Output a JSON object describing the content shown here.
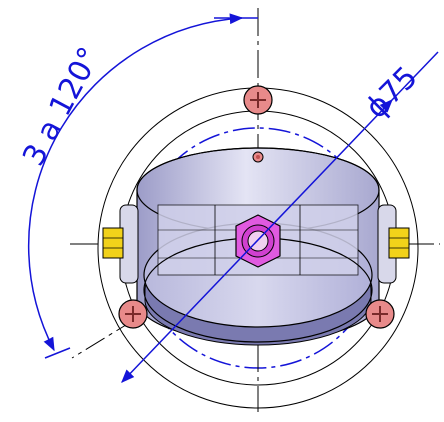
{
  "drawing": {
    "angular_dimension": {
      "label": "3 a 120°"
    },
    "diameter_dimension": {
      "label": "ϕ75"
    },
    "screws": [
      {
        "name": "top-screw"
      },
      {
        "name": "lower-left-screw"
      },
      {
        "name": "lower-right-screw"
      }
    ],
    "bolts": [
      {
        "name": "left-hex-bolt"
      },
      {
        "name": "right-hex-bolt"
      }
    ],
    "colors": {
      "dimension": "#1414d8",
      "outline": "#000000",
      "ring_fill": "#c8c8e6",
      "ring_dark": "#9a9ac8",
      "screw_fill": "#e88a8a",
      "bolt_fill": "#f2d21a",
      "center_nut": "#e05ae0"
    }
  }
}
